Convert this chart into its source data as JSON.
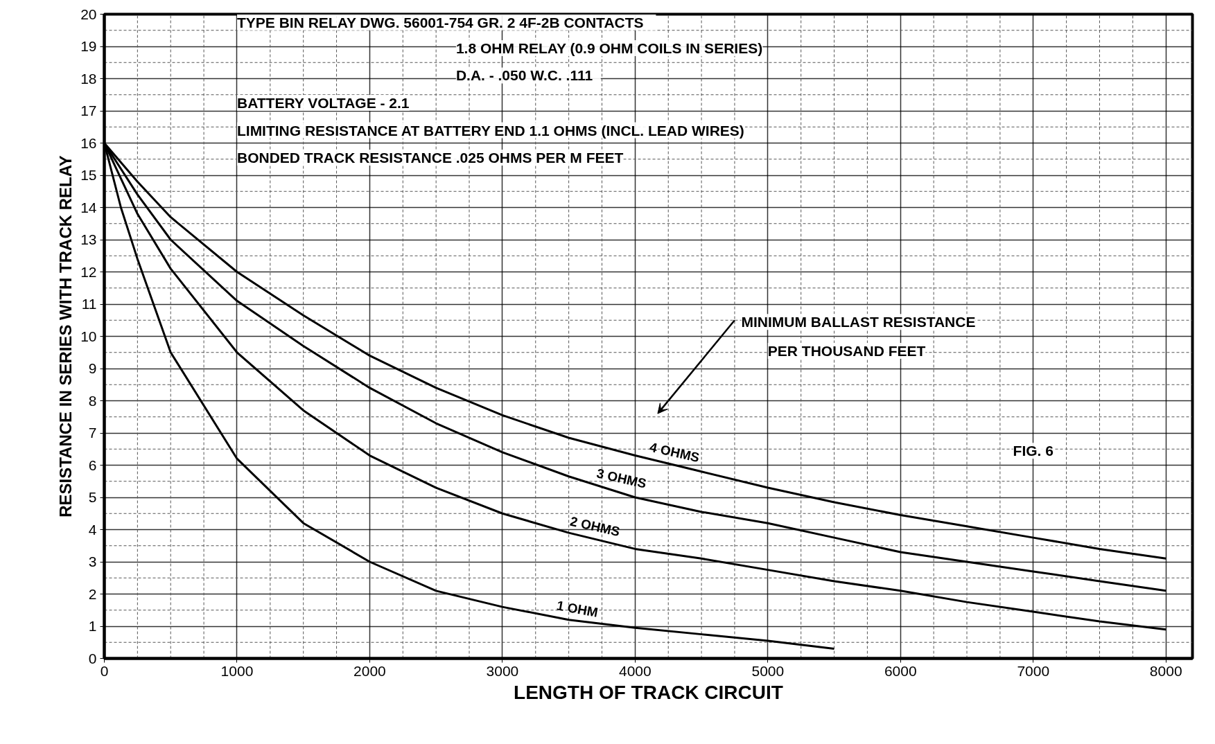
{
  "chart_data": {
    "type": "line",
    "xlabel": "LENGTH OF TRACK CIRCUIT",
    "ylabel": "RESISTANCE IN SERIES WITH TRACK RELAY",
    "x": [
      0,
      250,
      500,
      1000,
      1500,
      2000,
      2500,
      3000,
      3500,
      4000,
      4500,
      5000,
      5500,
      6000,
      6500,
      7000,
      7500,
      8000
    ],
    "series": [
      {
        "name": "4 OHMS",
        "color": "#000000",
        "values": [
          16,
          14.8,
          13.7,
          12.0,
          10.65,
          9.4,
          8.4,
          7.55,
          6.85,
          6.3,
          5.8,
          5.3,
          4.85,
          4.45,
          4.1,
          3.75,
          3.4,
          3.1
        ]
      },
      {
        "name": "3 OHMS",
        "color": "#000000",
        "values": [
          16,
          14.4,
          13.0,
          11.1,
          9.7,
          8.4,
          7.3,
          6.4,
          5.65,
          5.0,
          4.55,
          4.2,
          3.75,
          3.3,
          3.0,
          2.7,
          2.4,
          2.1
        ]
      },
      {
        "name": "2 OHMS",
        "color": "#000000",
        "values": [
          16,
          13.8,
          12.1,
          9.5,
          7.7,
          6.3,
          5.3,
          4.5,
          3.9,
          3.4,
          3.1,
          2.75,
          2.4,
          2.1,
          1.75,
          1.45,
          1.15,
          0.9
        ]
      },
      {
        "name": "1 OHM",
        "color": "#000000",
        "x": [
          0,
          125,
          250,
          500,
          1000,
          1500,
          2000,
          2500,
          3000,
          3500,
          4000,
          4500,
          5000,
          5500
        ],
        "values": [
          16,
          14.0,
          12.4,
          9.5,
          6.2,
          4.2,
          3.0,
          2.1,
          1.6,
          1.2,
          0.95,
          0.75,
          0.55,
          0.3
        ]
      }
    ],
    "xlim": [
      0,
      8200
    ],
    "ylim": [
      0,
      20
    ],
    "xticks": [
      0,
      1000,
      2000,
      3000,
      4000,
      5000,
      6000,
      7000,
      8000
    ],
    "yticks": [
      0,
      1,
      2,
      3,
      4,
      5,
      6,
      7,
      8,
      9,
      10,
      11,
      12,
      13,
      14,
      15,
      16,
      17,
      18,
      19,
      20
    ],
    "grid": true,
    "marker": "none",
    "line_style": "solid",
    "annotations": [
      "TYPE BIN RELAY DWG. 56001-754 GR. 2    4F-2B CONTACTS",
      "1.8 OHM RELAY (0.9 OHM COILS IN SERIES)",
      "D.A. - .050   W.C. .111",
      "BATTERY VOLTAGE - 2.1",
      "LIMITING RESISTANCE AT BATTERY END 1.1 OHMS (INCL. LEAD WIRES)",
      "BONDED TRACK RESISTANCE .025 OHMS PER M FEET",
      "MINIMUM BALLAST RESISTANCE",
      "PER THOUSAND FEET",
      "FIG. 6"
    ]
  }
}
